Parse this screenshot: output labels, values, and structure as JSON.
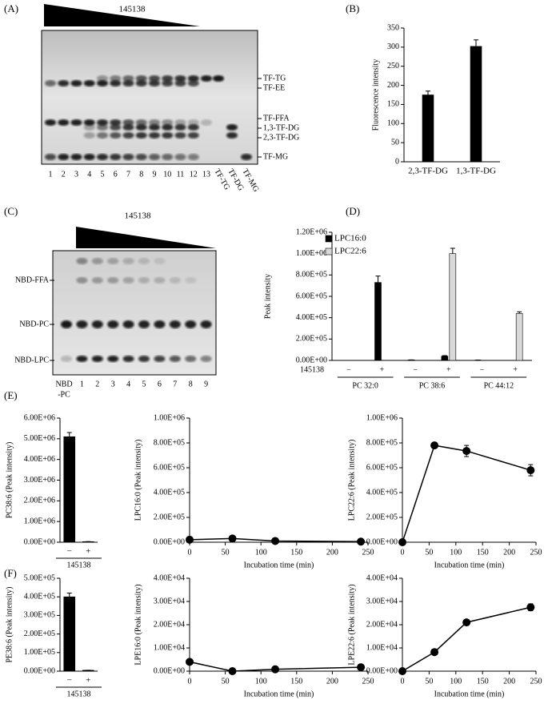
{
  "panel_labels": [
    "(A)",
    "(B)",
    "(C)",
    "(D)",
    "(E)",
    "(F)"
  ],
  "gel_a": {
    "title": "145138",
    "lanes": [
      "1",
      "2",
      "3",
      "4",
      "5",
      "6",
      "7",
      "8",
      "9",
      "10",
      "11",
      "12",
      "13"
    ],
    "standards": [
      "TF-TG",
      "TF-DG",
      "TF-MG"
    ],
    "bands": [
      "TF-TG",
      "TF-EE",
      "TF-FFA",
      "1,3-TF-DG",
      "2,3-TF-DG",
      "TF-MG"
    ]
  },
  "gel_c": {
    "title": "145138",
    "standard_lines": [
      "NBD",
      "-PC"
    ],
    "lanes": [
      "1",
      "2",
      "3",
      "4",
      "5",
      "6",
      "7",
      "8",
      "9"
    ],
    "bands": [
      "NBD-FFA",
      "NBD-PC",
      "NBD-LPC"
    ]
  },
  "chart_data": [
    {
      "type": "bar",
      "ylabel": "Fluorescence intensity",
      "categories": [
        "2,3-TF-DG",
        "1,3-TF-DG"
      ],
      "values": [
        175,
        302
      ],
      "errors": [
        10,
        17
      ],
      "color": "#000000",
      "ylim": [
        0,
        350
      ],
      "yticks": [
        0,
        50,
        100,
        150,
        200,
        250,
        300,
        350
      ]
    },
    {
      "type": "bar",
      "ylabel": "Peak intensity",
      "categories": [
        "−",
        "+",
        "−",
        "+",
        "−",
        "+"
      ],
      "groups": [
        "PC 32:0",
        "PC 38:6",
        "PC 44:12"
      ],
      "factor_label": "145138",
      "series": [
        {
          "name": "LPC16:0",
          "color": "#000000",
          "values": [
            0,
            730000,
            5000,
            40000,
            3000,
            0
          ],
          "errors": [
            0,
            60000,
            0,
            5000,
            0,
            0
          ]
        },
        {
          "name": "LPC22:6",
          "color": "#d9d9d9",
          "values": [
            0,
            0,
            0,
            1000000,
            0,
            440000
          ],
          "errors": [
            0,
            0,
            0,
            50000,
            0,
            15000
          ]
        }
      ],
      "legend": "top-left",
      "ylim": [
        0,
        1200000
      ],
      "yticks": [
        {
          "value": 0,
          "label": "0.00E+00"
        },
        {
          "value": 200000,
          "label": "2.00E+05"
        },
        {
          "value": 400000,
          "label": "4.00E+05"
        },
        {
          "value": 600000,
          "label": "6.00E+05"
        },
        {
          "value": 800000,
          "label": "8.00E+05"
        },
        {
          "value": 1000000,
          "label": "1.00E+06"
        },
        {
          "value": 1200000,
          "label": "1.20E+06"
        }
      ]
    },
    {
      "type": "bar",
      "ylabel": "PC38:6 (Peak intensity)",
      "categories": [
        "−",
        "+"
      ],
      "factor_label": "145138",
      "values": [
        5100000,
        30000
      ],
      "errors": [
        200000,
        0
      ],
      "color": "#000000",
      "ylim": [
        0,
        6000000
      ],
      "yticks": [
        {
          "value": 0,
          "label": "0.00E+00"
        },
        {
          "value": 1000000,
          "label": "1.00E+06"
        },
        {
          "value": 2000000,
          "label": "2.00E+06"
        },
        {
          "value": 3000000,
          "label": "3.00E+06"
        },
        {
          "value": 4000000,
          "label": "4.00E+06"
        },
        {
          "value": 5000000,
          "label": "5.00E+06"
        },
        {
          "value": 6000000,
          "label": "6.00E+06"
        }
      ]
    },
    {
      "type": "line",
      "ylabel": "LPC16:0 (Peak intensity)",
      "xlabel": "Incubation time (min)",
      "x": [
        0,
        60,
        120,
        240
      ],
      "values": [
        20000,
        30000,
        10000,
        5000
      ],
      "color": "#000000",
      "xlim": [
        0,
        250
      ],
      "xticks": [
        0,
        50,
        100,
        150,
        200,
        250
      ],
      "ylim": [
        0,
        1000000
      ],
      "yticks": [
        {
          "value": 0,
          "label": "0.00E+00"
        },
        {
          "value": 200000,
          "label": "2.00E+05"
        },
        {
          "value": 400000,
          "label": "4.00E+05"
        },
        {
          "value": 600000,
          "label": "6.00E+05"
        },
        {
          "value": 800000,
          "label": "8.00E+05"
        },
        {
          "value": 1000000,
          "label": "1.00E+06"
        }
      ]
    },
    {
      "type": "line",
      "ylabel": "LPC22:6 (Peak intensity)",
      "xlabel": "Incubation time (min)",
      "x": [
        0,
        60,
        120,
        240
      ],
      "values": [
        0,
        780000,
        735000,
        580000
      ],
      "errors": [
        0,
        15000,
        45000,
        45000
      ],
      "color": "#000000",
      "xlim": [
        0,
        250
      ],
      "xticks": [
        0,
        50,
        100,
        150,
        200,
        250
      ],
      "ylim": [
        0,
        1000000
      ],
      "yticks": [
        {
          "value": 0,
          "label": "0.00E+00"
        },
        {
          "value": 200000,
          "label": "2.00E+05"
        },
        {
          "value": 400000,
          "label": "4.00E+05"
        },
        {
          "value": 600000,
          "label": "6.00E+05"
        },
        {
          "value": 800000,
          "label": "8.00E+05"
        },
        {
          "value": 1000000,
          "label": "1.00E+06"
        }
      ]
    },
    {
      "type": "bar",
      "ylabel": "PE38:6 (Peak intensity)",
      "categories": [
        "−",
        "+"
      ],
      "factor_label": "145138",
      "values": [
        400000,
        5000
      ],
      "errors": [
        20000,
        0
      ],
      "color": "#000000",
      "ylim": [
        0,
        500000
      ],
      "yticks": [
        {
          "value": 0,
          "label": "0.00E+00"
        },
        {
          "value": 100000,
          "label": "1.00E+05"
        },
        {
          "value": 200000,
          "label": "2.00E+05"
        },
        {
          "value": 300000,
          "label": "3.00E+05"
        },
        {
          "value": 400000,
          "label": "4.00E+05"
        },
        {
          "value": 500000,
          "label": "5.00E+05"
        }
      ]
    },
    {
      "type": "line",
      "ylabel": "LPE16:0 (Peak intensity)",
      "xlabel": "Incubation time (min)",
      "x": [
        0,
        60,
        120,
        240
      ],
      "values": [
        4000,
        0,
        800,
        1700
      ],
      "color": "#000000",
      "xlim": [
        0,
        250
      ],
      "xticks": [
        0,
        50,
        100,
        150,
        200,
        250
      ],
      "ylim": [
        0,
        40000
      ],
      "yticks": [
        {
          "value": 0,
          "label": "0.00E+00"
        },
        {
          "value": 10000,
          "label": "1.00E+04"
        },
        {
          "value": 20000,
          "label": "2.00E+04"
        },
        {
          "value": 30000,
          "label": "3.00E+04"
        },
        {
          "value": 40000,
          "label": "4.00E+04"
        }
      ]
    },
    {
      "type": "line",
      "ylabel": "LPE22:6 (Peak intensity)",
      "xlabel": "Incubation time (min)",
      "x": [
        0,
        60,
        120,
        240
      ],
      "values": [
        0,
        8200,
        21000,
        27500
      ],
      "errors": [
        0,
        800,
        1200,
        1500
      ],
      "color": "#000000",
      "xlim": [
        0,
        250
      ],
      "xticks": [
        0,
        50,
        100,
        150,
        200,
        250
      ],
      "ylim": [
        0,
        40000
      ],
      "yticks": [
        {
          "value": 0,
          "label": "0.00E+00"
        },
        {
          "value": 10000,
          "label": "1.00E+04"
        },
        {
          "value": 20000,
          "label": "2.00E+04"
        },
        {
          "value": 30000,
          "label": "3.00E+04"
        },
        {
          "value": 40000,
          "label": "4.00E+04"
        }
      ]
    }
  ]
}
